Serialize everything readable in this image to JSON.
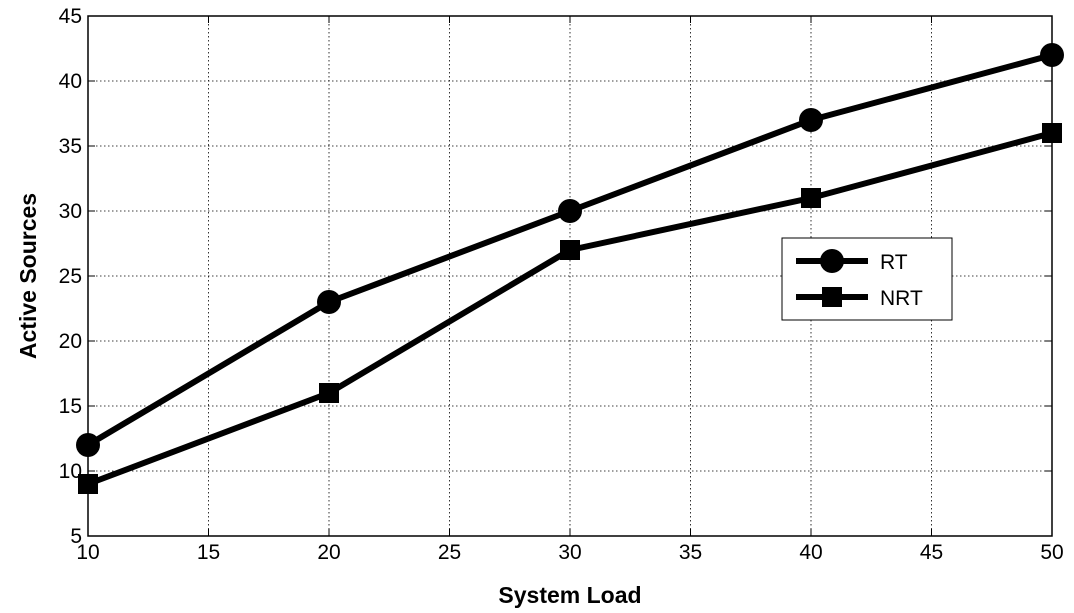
{
  "chart_data": {
    "type": "line",
    "title": "",
    "xlabel": "System Load",
    "ylabel": "Active Sources",
    "x": [
      10,
      20,
      30,
      40,
      50
    ],
    "xlim": [
      10,
      50
    ],
    "ylim": [
      5,
      45
    ],
    "xticks": [
      10,
      15,
      20,
      25,
      30,
      35,
      40,
      45,
      50
    ],
    "yticks": [
      5,
      10,
      15,
      20,
      25,
      30,
      35,
      40,
      45
    ],
    "grid": true,
    "legend_position": "right",
    "series": [
      {
        "name": "RT",
        "marker": "circle",
        "color": "#000000",
        "values": [
          12,
          23,
          30,
          37,
          42
        ]
      },
      {
        "name": "NRT",
        "marker": "square",
        "color": "#000000",
        "values": [
          9,
          16,
          27,
          31,
          36
        ]
      }
    ]
  }
}
